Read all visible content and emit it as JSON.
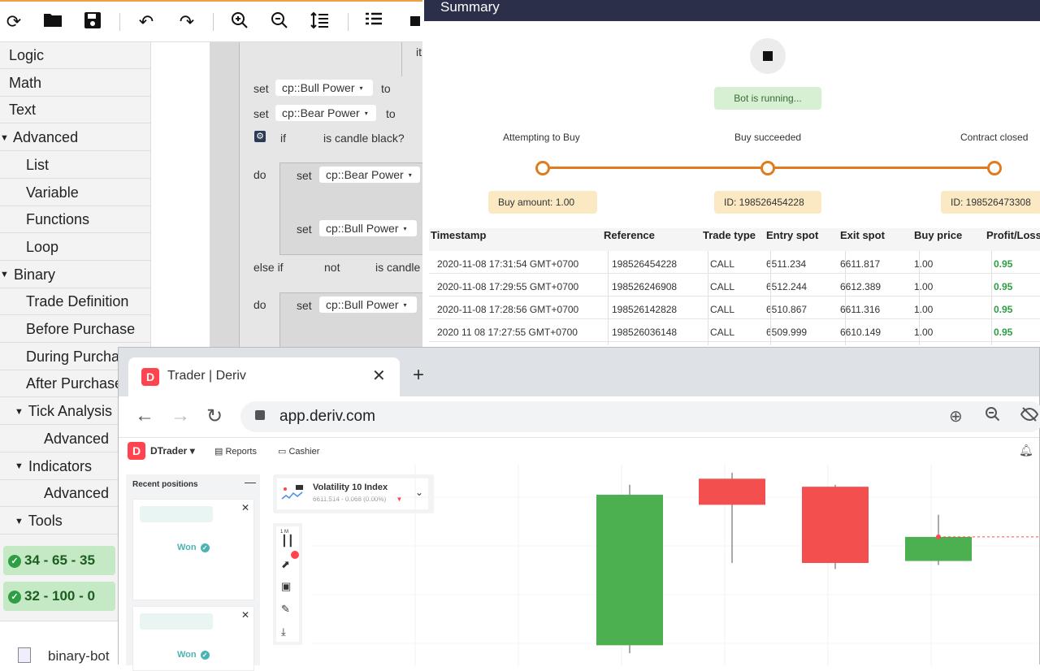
{
  "toolbar": {
    "icons": [
      "refresh-icon",
      "folder-icon",
      "save-icon",
      "undo-icon",
      "redo-icon",
      "zoom-in-icon",
      "zoom-out-icon",
      "sort-icon",
      "list-icon",
      "stop-icon"
    ]
  },
  "toolbox": {
    "items": [
      {
        "label": "Logic",
        "indent": 0,
        "arrow": ""
      },
      {
        "label": "Math",
        "indent": 0,
        "arrow": ""
      },
      {
        "label": "Text",
        "indent": 0,
        "arrow": ""
      },
      {
        "label": "Advanced",
        "indent": 0,
        "arrow": "▾"
      },
      {
        "label": "List",
        "indent": 1,
        "arrow": ""
      },
      {
        "label": "Variable",
        "indent": 1,
        "arrow": ""
      },
      {
        "label": "Functions",
        "indent": 1,
        "arrow": ""
      },
      {
        "label": "Loop",
        "indent": 1,
        "arrow": ""
      },
      {
        "label": "Binary",
        "indent": 0,
        "arrow": "▾"
      },
      {
        "label": "Trade Definition",
        "indent": 1,
        "arrow": ""
      },
      {
        "label": "Before Purchase",
        "indent": 1,
        "arrow": ""
      },
      {
        "label": "During Purcha",
        "indent": 1,
        "arrow": ""
      },
      {
        "label": "After Purchase",
        "indent": 1,
        "arrow": ""
      },
      {
        "label": "Tick Analysis",
        "indent": 1,
        "arrow": "▾"
      },
      {
        "label": "Advanced",
        "indent": 2,
        "arrow": ""
      },
      {
        "label": "Indicators",
        "indent": 1,
        "arrow": "▾"
      },
      {
        "label": "Advanced",
        "indent": 2,
        "arrow": ""
      },
      {
        "label": "Tools",
        "indent": 1,
        "arrow": "▾"
      }
    ],
    "chips": [
      "34 - 65 - 35",
      "32 - 100 - 0"
    ],
    "download": "binary-bot"
  },
  "workspace": {
    "set": "set",
    "to": "to",
    "if": "if",
    "do": "do",
    "else_if": "else if",
    "not": "not",
    "bull_power": "cp::Bull Power",
    "bear_power": "cp::Bear Power",
    "is_candle_black": "is candle black?",
    "is_candle": "is candle",
    "partial_top": "it"
  },
  "summary": {
    "title": "Summary",
    "status": "Bot is running...",
    "steps": [
      "Attempting to Buy",
      "Buy succeeded",
      "Contract closed"
    ],
    "pills": [
      "Buy amount: 1.00",
      "ID: 198526454228",
      "ID: 198526473308"
    ],
    "columns": [
      "Timestamp",
      "Reference",
      "Trade type",
      "Entry spot",
      "Exit spot",
      "Buy price",
      "Profit/Loss"
    ],
    "rows": [
      [
        "2020-11-08 17:31:54 GMT+0700",
        "198526454228",
        "CALL",
        "6511.234",
        "6611.817",
        "1.00",
        "0.95"
      ],
      [
        "2020-11-08 17:29:55 GMT+0700",
        "198526246908",
        "CALL",
        "6512.244",
        "6612.389",
        "1.00",
        "0.95"
      ],
      [
        "2020-11-08 17:28:56 GMT+0700",
        "198526142828",
        "CALL",
        "6510.867",
        "6611.316",
        "1.00",
        "0.95"
      ],
      [
        "2020 11 08 17:27:55 GMT+0700",
        "198526036148",
        "CALL",
        "6509.999",
        "6610.149",
        "1.00",
        "0.95"
      ]
    ]
  },
  "browser": {
    "tab_title": "Trader | Deriv",
    "url": "app.deriv.com",
    "app_name": "DTrader",
    "nav": [
      "Reports",
      "Cashier"
    ],
    "recent_title": "Recent positions",
    "won_label": "Won",
    "symbol_name": "Volatility 10 Index",
    "symbol_price": "6611.514 - 0.068 (0.00%)",
    "interval": "1 M",
    "colors": {
      "up": "#4caf50",
      "down": "#f44f4f",
      "brand": "#ff444f",
      "accent": "#e07b20"
    }
  },
  "chart_data": {
    "type": "candlestick",
    "candles": [
      {
        "open": 6612.5,
        "close": 6605.0,
        "high": 6613.0,
        "low": 6604.6,
        "color": "up-green"
      },
      {
        "open": 6612.0,
        "close": 6613.3,
        "high": 6613.6,
        "low": 6609.1,
        "color": "down-red"
      },
      {
        "open": 6609.1,
        "close": 6612.9,
        "high": 6613.0,
        "low": 6608.8,
        "color": "down-red"
      },
      {
        "open": 6609.2,
        "close": 6610.4,
        "high": 6611.5,
        "low": 6609.0,
        "color": "up-green"
      }
    ],
    "ylim": [
      6604.0,
      6614.0
    ]
  }
}
